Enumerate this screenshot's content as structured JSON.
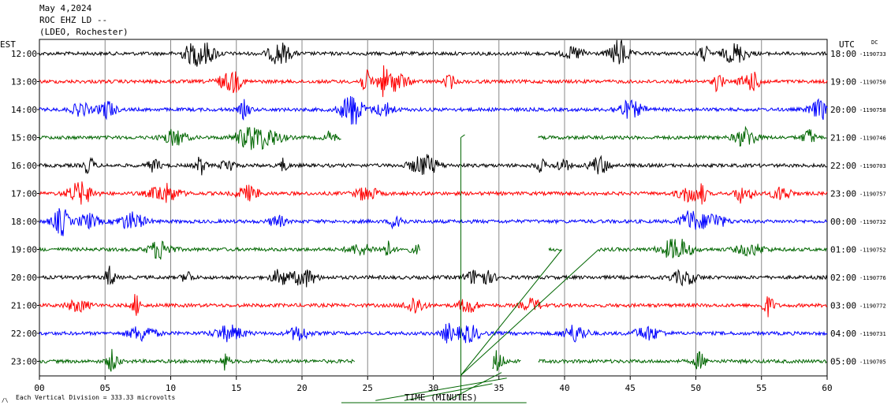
{
  "header": {
    "date": "May 4,2024",
    "station": "ROC EHZ LD --",
    "network": "(LDEO, Rochester)",
    "left_timezone": "EST",
    "right_timezone": "UTC",
    "dc_label": "DC"
  },
  "footer": {
    "scale_note": "Each Vertical Division =  333.33 microvolts",
    "scale_marker": "/\\"
  },
  "chart_data": {
    "type": "line",
    "title": "May 4,2024",
    "xlabel": "TIME (MINUTES)",
    "ylabel": "",
    "xlim": [
      0,
      60
    ],
    "x_ticks": [
      "00",
      "05",
      "10",
      "15",
      "20",
      "25",
      "30",
      "35",
      "40",
      "45",
      "50",
      "55",
      "60"
    ],
    "grid": true,
    "colors": {
      "black": "#000000",
      "red": "#ff0000",
      "blue": "#0000ff",
      "green": "#006600"
    },
    "rows": [
      {
        "est": "12:00",
        "utc": "18:00",
        "dc": "-1190733",
        "color": "#000000",
        "segments": [
          [
            0,
            60
          ]
        ]
      },
      {
        "est": "13:00",
        "utc": "19:00",
        "dc": "-1190750",
        "color": "#ff0000",
        "segments": [
          [
            0,
            60
          ]
        ]
      },
      {
        "est": "14:00",
        "utc": "20:00",
        "dc": "-1190758",
        "color": "#0000ff",
        "segments": [
          [
            0,
            60
          ]
        ]
      },
      {
        "est": "15:00",
        "utc": "21:00",
        "dc": "-1190746",
        "color": "#006600",
        "segments": [
          [
            0,
            23
          ],
          [
            38,
            60
          ]
        ]
      },
      {
        "est": "16:00",
        "utc": "22:00",
        "dc": "-1190703",
        "color": "#000000",
        "segments": [
          [
            0,
            60
          ]
        ]
      },
      {
        "est": "17:00",
        "utc": "23:00",
        "dc": "-1190757",
        "color": "#ff0000",
        "segments": [
          [
            0,
            60
          ]
        ]
      },
      {
        "est": "18:00",
        "utc": "00:00",
        "dc": "-1190732",
        "color": "#0000ff",
        "segments": [
          [
            0,
            60
          ]
        ]
      },
      {
        "est": "19:00",
        "utc": "01:00",
        "dc": "-1190752",
        "color": "#006600",
        "segments": [
          [
            0,
            29
          ],
          [
            38.8,
            39.8
          ],
          [
            42.6,
            60
          ]
        ]
      },
      {
        "est": "20:00",
        "utc": "02:00",
        "dc": "-1190776",
        "color": "#000000",
        "segments": [
          [
            0,
            60
          ]
        ]
      },
      {
        "est": "21:00",
        "utc": "03:00",
        "dc": "-1190772",
        "color": "#ff0000",
        "segments": [
          [
            0,
            60
          ]
        ]
      },
      {
        "est": "22:00",
        "utc": "04:00",
        "dc": "-1190731",
        "color": "#0000ff",
        "segments": [
          [
            0,
            60
          ]
        ]
      },
      {
        "est": "23:00",
        "utc": "05:00",
        "dc": "-1190705",
        "color": "#006600",
        "segments": [
          [
            0,
            24
          ],
          [
            34.5,
            36.7
          ],
          [
            38,
            60
          ]
        ]
      }
    ]
  }
}
